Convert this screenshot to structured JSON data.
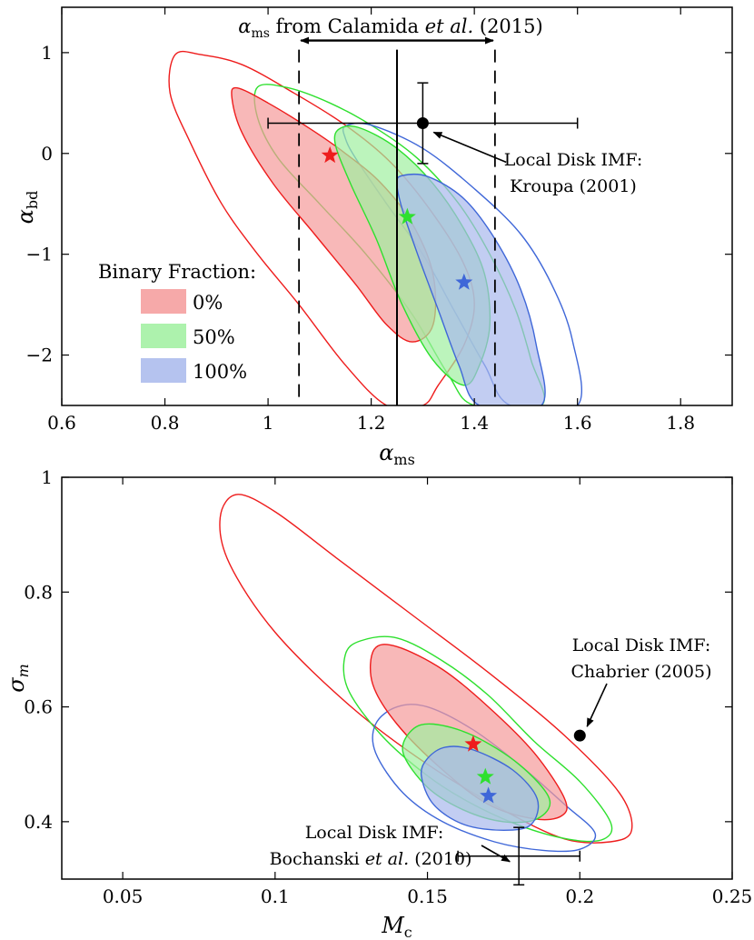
{
  "chart_data": [
    {
      "type": "contour",
      "xlabel": "α_ms",
      "ylabel": "α_bd",
      "xlim": [
        0.6,
        1.9
      ],
      "ylim": [
        -2.5,
        1.45
      ],
      "xticks": [
        0.6,
        0.8,
        1.0,
        1.2,
        1.4,
        1.6,
        1.8
      ],
      "xtick_labels": [
        "0.6",
        "0.8",
        "1",
        "1.2",
        "1.4",
        "1.6",
        "1.8"
      ],
      "yticks": [
        1,
        0,
        -1,
        -2
      ],
      "ytick_labels": [
        "1",
        "0",
        "−1",
        "−2"
      ],
      "legend_title": "Binary Fraction:",
      "legend_position": "lower-left",
      "series": [
        {
          "name": "0%",
          "color": "#ee1c1c",
          "fill": "#f59a9a",
          "best_fit": [
            1.12,
            -0.02
          ],
          "inner_contour": [
            [
              0.94,
              0.65
            ],
            [
              1.0,
              0.5
            ],
            [
              1.08,
              0.25
            ],
            [
              1.15,
              0.0
            ],
            [
              1.22,
              -0.3
            ],
            [
              1.28,
              -0.7
            ],
            [
              1.32,
              -1.2
            ],
            [
              1.32,
              -1.7
            ],
            [
              1.28,
              -1.87
            ],
            [
              1.23,
              -1.7
            ],
            [
              1.17,
              -1.3
            ],
            [
              1.09,
              -0.8
            ],
            [
              1.01,
              -0.3
            ],
            [
              0.95,
              0.2
            ],
            [
              0.93,
              0.55
            ]
          ],
          "outer_contour": [
            [
              0.82,
              0.98
            ],
            [
              0.87,
              0.98
            ],
            [
              0.95,
              0.88
            ],
            [
              1.05,
              0.6
            ],
            [
              1.15,
              0.28
            ],
            [
              1.24,
              -0.1
            ],
            [
              1.32,
              -0.6
            ],
            [
              1.38,
              -1.1
            ],
            [
              1.4,
              -1.5
            ],
            [
              1.38,
              -1.9
            ],
            [
              1.33,
              -2.3
            ],
            [
              1.3,
              -2.5
            ],
            [
              1.23,
              -2.5
            ],
            [
              1.15,
              -2.1
            ],
            [
              1.06,
              -1.5
            ],
            [
              0.98,
              -1.0
            ],
            [
              0.91,
              -0.5
            ],
            [
              0.85,
              0.1
            ],
            [
              0.81,
              0.6
            ]
          ]
        },
        {
          "name": "50%",
          "color": "#2ee02e",
          "fill": "#9ff09f",
          "best_fit": [
            1.27,
            -0.63
          ],
          "inner_contour": [
            [
              1.14,
              0.25
            ],
            [
              1.18,
              0.25
            ],
            [
              1.25,
              0.05
            ],
            [
              1.32,
              -0.3
            ],
            [
              1.38,
              -0.75
            ],
            [
              1.42,
              -1.2
            ],
            [
              1.43,
              -1.7
            ],
            [
              1.41,
              -2.1
            ],
            [
              1.38,
              -2.3
            ],
            [
              1.32,
              -2.05
            ],
            [
              1.26,
              -1.5
            ],
            [
              1.21,
              -0.85
            ],
            [
              1.16,
              -0.3
            ],
            [
              1.13,
              0.1
            ]
          ],
          "outer_contour": [
            [
              0.98,
              0.66
            ],
            [
              1.04,
              0.65
            ],
            [
              1.12,
              0.5
            ],
            [
              1.2,
              0.28
            ],
            [
              1.29,
              -0.05
            ],
            [
              1.37,
              -0.5
            ],
            [
              1.43,
              -1.0
            ],
            [
              1.48,
              -1.55
            ],
            [
              1.51,
              -2.05
            ],
            [
              1.53,
              -2.5
            ],
            [
              1.4,
              -2.5
            ],
            [
              1.35,
              -2.2
            ],
            [
              1.28,
              -1.6
            ],
            [
              1.19,
              -1.0
            ],
            [
              1.1,
              -0.5
            ],
            [
              1.02,
              -0.05
            ],
            [
              0.98,
              0.35
            ]
          ]
        },
        {
          "name": "100%",
          "color": "#3f67d8",
          "fill": "#a8b8ec",
          "best_fit": [
            1.38,
            -1.28
          ],
          "inner_contour": [
            [
              1.26,
              -0.22
            ],
            [
              1.31,
              -0.23
            ],
            [
              1.38,
              -0.45
            ],
            [
              1.44,
              -0.85
            ],
            [
              1.49,
              -1.35
            ],
            [
              1.52,
              -1.9
            ],
            [
              1.53,
              -2.5
            ],
            [
              1.41,
              -2.5
            ],
            [
              1.37,
              -2.1
            ],
            [
              1.33,
              -1.55
            ],
            [
              1.29,
              -1.0
            ],
            [
              1.26,
              -0.55
            ],
            [
              1.25,
              -0.3
            ]
          ],
          "outer_contour": [
            [
              1.15,
              0.27
            ],
            [
              1.2,
              0.28
            ],
            [
              1.3,
              0.05
            ],
            [
              1.4,
              -0.35
            ],
            [
              1.49,
              -0.8
            ],
            [
              1.55,
              -1.3
            ],
            [
              1.59,
              -1.85
            ],
            [
              1.6,
              -2.5
            ],
            [
              1.47,
              -2.5
            ],
            [
              1.42,
              -2.1
            ],
            [
              1.36,
              -1.55
            ],
            [
              1.3,
              -1.0
            ],
            [
              1.23,
              -0.5
            ],
            [
              1.17,
              -0.05
            ],
            [
              1.15,
              0.15
            ]
          ]
        }
      ],
      "reference_point": {
        "x": 1.3,
        "y": 0.3,
        "xerr": [
          0.3,
          0.3
        ],
        "yerr": [
          0.4,
          0.4
        ],
        "label_line1": "Local Disk IMF:",
        "label_line2": "Kroupa (2001)",
        "label_anchor": [
          1.37,
          -0.05
        ]
      },
      "vertical_solid_line": 1.25,
      "vertical_dashed_lines": [
        1.06,
        1.44
      ],
      "range_arrow": {
        "from": 1.06,
        "to": 1.44,
        "y": 1.12,
        "label_math": "α",
        "label_sub": "ms",
        "label_text": " from Calamida ",
        "label_italic": "et al.",
        "label_tail": " (2015)"
      }
    },
    {
      "type": "contour",
      "xlabel": "M_c",
      "ylabel": "σ_m",
      "xlim": [
        0.03,
        0.25
      ],
      "ylim": [
        0.3,
        1.0
      ],
      "xticks": [
        0.05,
        0.1,
        0.15,
        0.2,
        0.25
      ],
      "xtick_labels": [
        "0.05",
        "0.1",
        "0.15",
        "0.2",
        "0.25"
      ],
      "yticks": [
        1.0,
        0.8,
        0.6,
        0.4
      ],
      "ytick_labels": [
        "1",
        "0.8",
        "0.6",
        "0.4"
      ],
      "series": [
        {
          "name": "0%",
          "color": "#ee1c1c",
          "fill": "#f59a9a",
          "best_fit": [
            0.165,
            0.535
          ],
          "inner_contour": [
            [
              0.1325,
              0.7
            ],
            [
              0.14,
              0.705
            ],
            [
              0.155,
              0.665
            ],
            [
              0.17,
              0.6
            ],
            [
              0.185,
              0.52
            ],
            [
              0.195,
              0.44
            ],
            [
              0.194,
              0.41
            ],
            [
              0.185,
              0.405
            ],
            [
              0.17,
              0.43
            ],
            [
              0.155,
              0.49
            ],
            [
              0.14,
              0.57
            ],
            [
              0.132,
              0.64
            ]
          ],
          "outer_contour": [
            [
              0.0875,
              0.97
            ],
            [
              0.1,
              0.94
            ],
            [
              0.12,
              0.86
            ],
            [
              0.145,
              0.76
            ],
            [
              0.17,
              0.66
            ],
            [
              0.195,
              0.55
            ],
            [
              0.213,
              0.45
            ],
            [
              0.217,
              0.385
            ],
            [
              0.21,
              0.365
            ],
            [
              0.195,
              0.37
            ],
            [
              0.175,
              0.42
            ],
            [
              0.15,
              0.5
            ],
            [
              0.125,
              0.6
            ],
            [
              0.1,
              0.73
            ],
            [
              0.085,
              0.85
            ],
            [
              0.082,
              0.93
            ]
          ]
        },
        {
          "name": "50%",
          "color": "#2ee02e",
          "fill": "#9ff09f",
          "best_fit": [
            0.169,
            0.478
          ],
          "inner_contour": [
            [
              0.145,
              0.56
            ],
            [
              0.152,
              0.57
            ],
            [
              0.165,
              0.55
            ],
            [
              0.18,
              0.5
            ],
            [
              0.19,
              0.44
            ],
            [
              0.186,
              0.405
            ],
            [
              0.175,
              0.4
            ],
            [
              0.162,
              0.42
            ],
            [
              0.15,
              0.46
            ],
            [
              0.142,
              0.52
            ]
          ],
          "outer_contour": [
            [
              0.128,
              0.715
            ],
            [
              0.14,
              0.72
            ],
            [
              0.155,
              0.68
            ],
            [
              0.17,
              0.62
            ],
            [
              0.185,
              0.54
            ],
            [
              0.2,
              0.47
            ],
            [
              0.21,
              0.4
            ],
            [
              0.208,
              0.37
            ],
            [
              0.198,
              0.368
            ],
            [
              0.182,
              0.39
            ],
            [
              0.165,
              0.43
            ],
            [
              0.15,
              0.48
            ],
            [
              0.135,
              0.55
            ],
            [
              0.124,
              0.63
            ],
            [
              0.123,
              0.69
            ]
          ]
        },
        {
          "name": "100%",
          "color": "#3f67d8",
          "fill": "#a8b8ec",
          "best_fit": [
            0.17,
            0.445
          ],
          "inner_contour": [
            [
              0.156,
              0.53
            ],
            [
              0.165,
              0.525
            ],
            [
              0.178,
              0.49
            ],
            [
              0.186,
              0.44
            ],
            [
              0.184,
              0.395
            ],
            [
              0.175,
              0.385
            ],
            [
              0.162,
              0.395
            ],
            [
              0.152,
              0.43
            ],
            [
              0.148,
              0.48
            ],
            [
              0.15,
              0.51
            ]
          ],
          "outer_contour": [
            [
              0.14,
              0.6
            ],
            [
              0.15,
              0.6
            ],
            [
              0.165,
              0.56
            ],
            [
              0.18,
              0.5
            ],
            [
              0.195,
              0.43
            ],
            [
              0.205,
              0.38
            ],
            [
              0.2,
              0.352
            ],
            [
              0.188,
              0.35
            ],
            [
              0.172,
              0.365
            ],
            [
              0.155,
              0.4
            ],
            [
              0.142,
              0.45
            ],
            [
              0.133,
              0.52
            ],
            [
              0.133,
              0.57
            ]
          ]
        }
      ],
      "reference_points": [
        {
          "x": 0.2,
          "y": 0.55,
          "label_line1": "Local Disk IMF:",
          "label_line2": "Chabrier (2005)"
        },
        {
          "x": 0.18,
          "y": 0.34,
          "xerr": [
            0.02,
            0.02
          ],
          "yerr": [
            0.05,
            0.05
          ],
          "label_line1": "Local Disk IMF:",
          "label_line2_text": "Bochanski ",
          "label_line2_italic": "et al.",
          "label_line2_tail": " (2010)"
        }
      ]
    }
  ]
}
